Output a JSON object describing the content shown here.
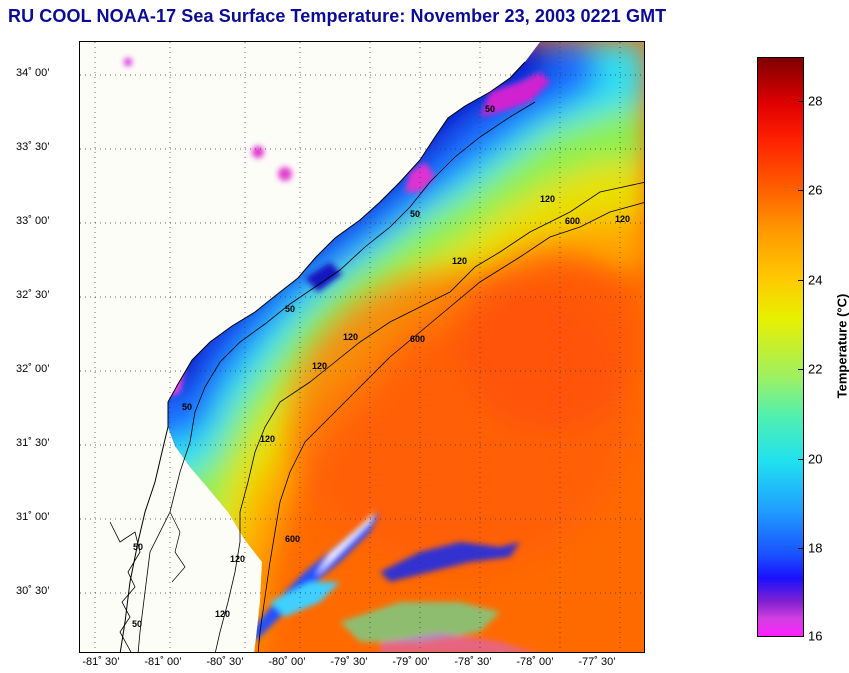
{
  "title": "RU COOL  NOAA-17  Sea Surface Temperature:  November 23, 2003 0221 GMT",
  "map": {
    "lat_labels": [
      "34˚ 00’",
      "33˚ 30’",
      "33˚ 00’",
      "32˚ 30’",
      "32˚ 00’",
      "31˚ 30’",
      "31˚ 00’",
      "30˚ 30’"
    ],
    "lon_labels": [
      "-81˚ 30’",
      "-81˚ 00’",
      "-80˚ 30’",
      "-80˚ 00’",
      "-79˚ 30’",
      "-79˚ 00’",
      "-78˚ 30’",
      "-78˚ 00’",
      "-77˚ 30’"
    ],
    "contour_labels": [
      "50",
      "50",
      "50",
      "50",
      "50",
      "50",
      "120",
      "120",
      "120",
      "120",
      "120",
      "120",
      "120",
      "120",
      "600",
      "600",
      "600"
    ]
  },
  "colorbar": {
    "title": "Temperature (°C)",
    "ticks": [
      "28",
      "26",
      "24",
      "22",
      "20",
      "18",
      "16"
    ],
    "min": 16,
    "max": 29
  }
}
